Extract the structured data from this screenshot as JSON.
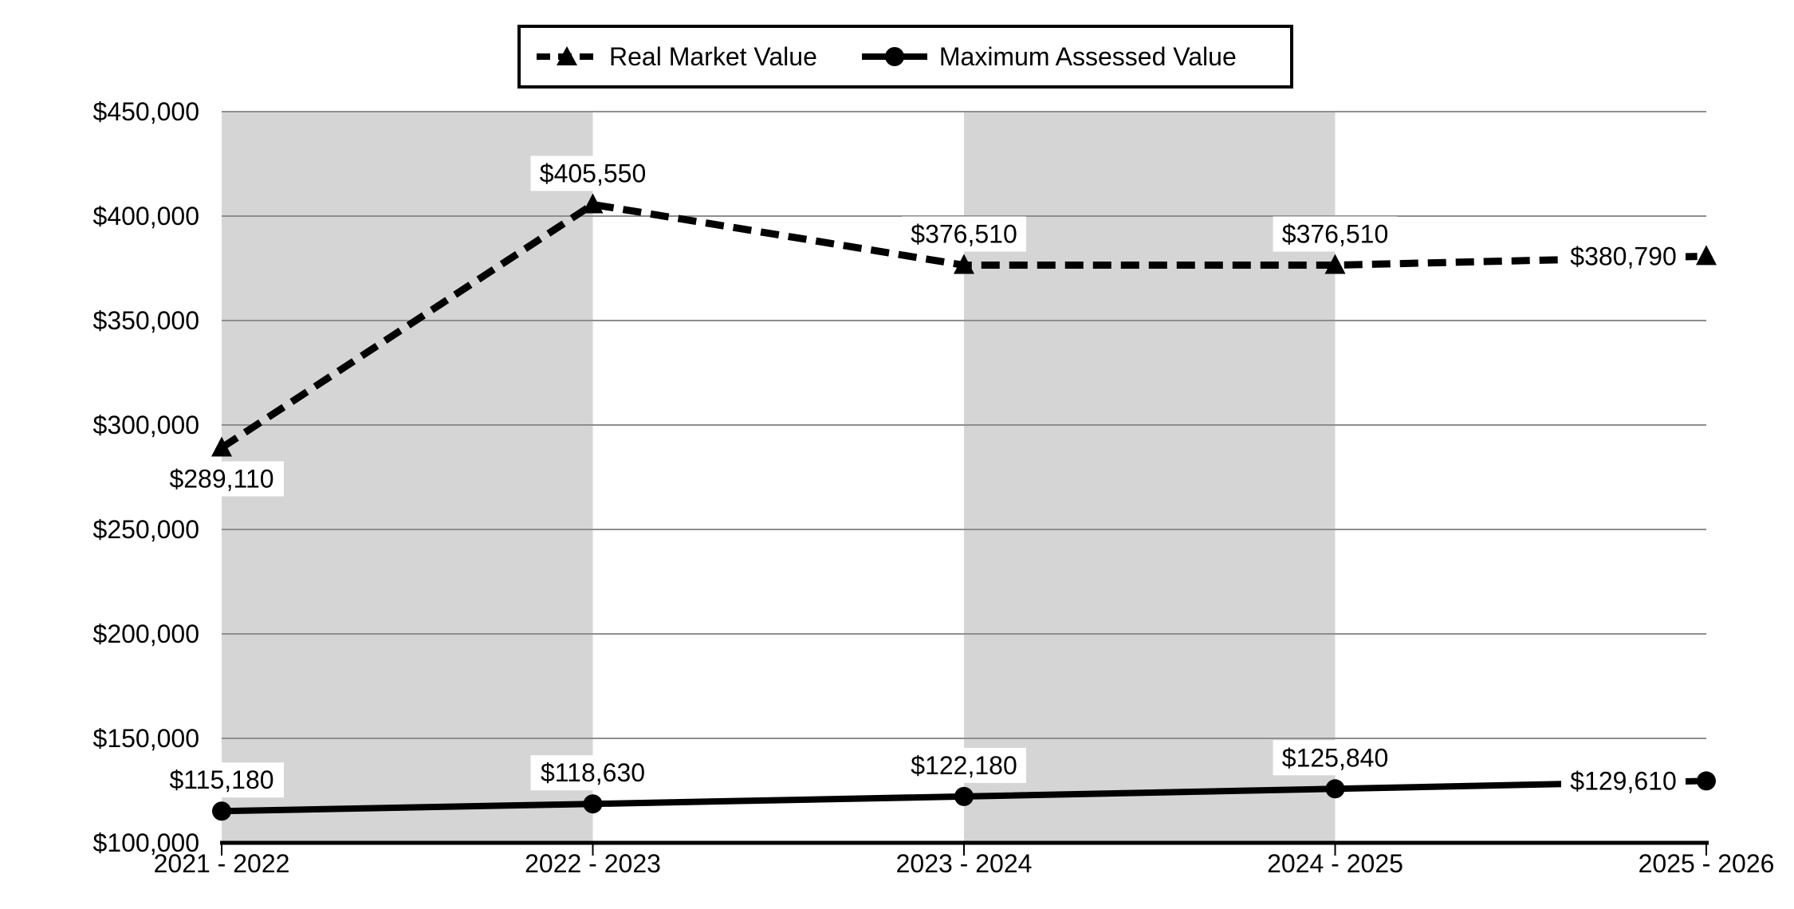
{
  "chart_data": {
    "type": "line",
    "title": "",
    "categories": [
      "2021 - 2022",
      "2022 - 2023",
      "2023 - 2024",
      "2024 - 2025",
      "2025 - 2026"
    ],
    "series": [
      {
        "name": "Real Market Value",
        "line_style": "dashed",
        "marker": "triangle",
        "values": [
          289110,
          405550,
          376510,
          376510,
          380790
        ],
        "labels": [
          "$289,110",
          "$405,550",
          "$376,510",
          "$376,510",
          "$380,790"
        ],
        "label_positions": [
          "below",
          "above",
          "above",
          "above",
          "left"
        ]
      },
      {
        "name": "Maximum Assessed Value",
        "line_style": "solid",
        "marker": "circle",
        "values": [
          115180,
          118630,
          122180,
          125840,
          129610
        ],
        "labels": [
          "$115,180",
          "$118,630",
          "$122,180",
          "$125,840",
          "$129,610"
        ],
        "label_positions": [
          "above",
          "above",
          "above",
          "above",
          "left"
        ]
      }
    ],
    "y_axis": {
      "min": 100000,
      "max": 450000,
      "step": 50000,
      "tick_labels": [
        "$100,000",
        "$150,000",
        "$200,000",
        "$250,000",
        "$300,000",
        "$350,000",
        "$400,000",
        "$450,000"
      ]
    },
    "x_axis": {
      "tick_labels": [
        "2021 - 2022",
        "2022 - 2023",
        "2023 - 2024",
        "2024 - 2025",
        "2025 - 2026"
      ]
    },
    "legend": {
      "position": "top-center",
      "entries": [
        "Real Market Value",
        "Maximum Assessed Value"
      ]
    },
    "plot_bands": {
      "intervals": [
        [
          0,
          1
        ],
        [
          2,
          3
        ]
      ]
    },
    "grid": true,
    "colors": {
      "series": "#000000",
      "band": "#d5d5d5",
      "gridline": "#8e8e8e",
      "axis": "#000000",
      "label_background": "#ffffff",
      "text": "#000000"
    }
  }
}
